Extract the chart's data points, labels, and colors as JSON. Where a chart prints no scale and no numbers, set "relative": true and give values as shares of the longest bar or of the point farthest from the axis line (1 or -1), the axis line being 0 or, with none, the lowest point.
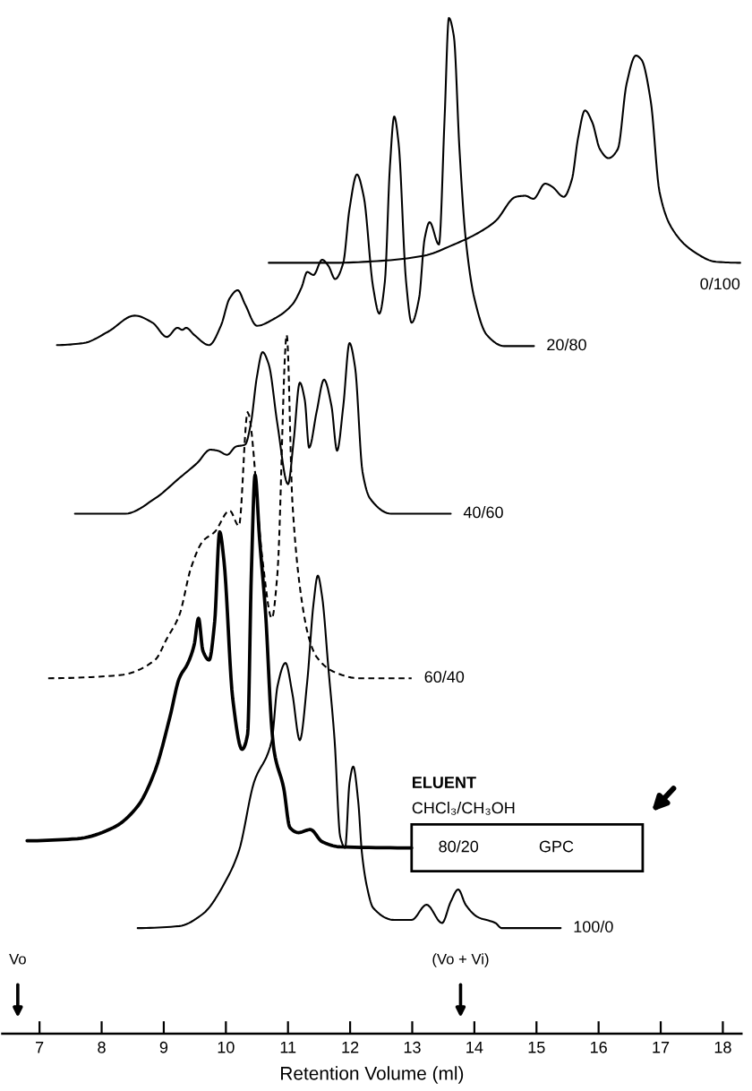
{
  "chart_data": {
    "type": "line",
    "relative": true,
    "xlabel": "Retention Volume (ml)",
    "xlim": [
      6.4,
      18.3
    ],
    "xticks": [
      7,
      8,
      9,
      10,
      11,
      12,
      13,
      14,
      15,
      16,
      17,
      18
    ],
    "tick_labels": "x",
    "line_style": "solid",
    "series": [
      {
        "name": "0/100",
        "color": "#000000",
        "x": [
          10.69,
          11.75,
          12.51,
          13.19,
          13.67,
          14.05,
          14.34,
          14.67,
          14.82,
          14.95,
          15.14,
          15.25,
          15.44,
          15.57,
          15.67,
          15.78,
          15.9,
          16.02,
          16.16,
          16.31,
          16.45,
          16.6,
          16.69,
          16.84,
          16.98,
          17.17,
          17.51,
          17.89,
          18.28
        ],
        "values": [
          0.759,
          0.759,
          0.761,
          0.766,
          0.777,
          0.788,
          0.8,
          0.824,
          0.825,
          0.822,
          0.837,
          0.834,
          0.824,
          0.841,
          0.882,
          0.909,
          0.897,
          0.871,
          0.862,
          0.871,
          0.935,
          0.963,
          0.959,
          0.918,
          0.829,
          0.794,
          0.771,
          0.76,
          0.759
        ]
      },
      {
        "name": "20/80",
        "color": "#000000",
        "x": [
          7.28,
          7.71,
          8.1,
          8.53,
          8.82,
          9.05,
          9.22,
          9.3,
          9.36,
          9.49,
          9.73,
          9.92,
          10.06,
          10.19,
          10.31,
          10.5,
          10.78,
          11.07,
          11.22,
          11.31,
          11.41,
          11.55,
          11.65,
          11.76,
          11.89,
          11.99,
          12.11,
          12.22,
          12.37,
          12.47,
          12.56,
          12.64,
          12.71,
          12.78,
          12.9,
          12.99,
          13.11,
          13.2,
          13.28,
          13.43,
          13.52,
          13.59,
          13.67,
          13.76,
          13.86,
          14.0,
          14.2,
          14.48,
          14.96
        ],
        "values": [
          0.678,
          0.68,
          0.691,
          0.707,
          0.7,
          0.686,
          0.695,
          0.693,
          0.695,
          0.688,
          0.678,
          0.697,
          0.724,
          0.732,
          0.718,
          0.697,
          0.704,
          0.718,
          0.735,
          0.75,
          0.747,
          0.762,
          0.756,
          0.743,
          0.759,
          0.812,
          0.846,
          0.824,
          0.735,
          0.709,
          0.741,
          0.853,
          0.903,
          0.877,
          0.741,
          0.7,
          0.724,
          0.783,
          0.799,
          0.777,
          0.9,
          1.0,
          0.982,
          0.871,
          0.783,
          0.724,
          0.688,
          0.677,
          0.677
        ]
      },
      {
        "name": "40/60",
        "color": "#000000",
        "x": [
          7.57,
          8.38,
          8.86,
          9.25,
          9.54,
          9.75,
          9.87,
          10.02,
          10.16,
          10.31,
          10.4,
          10.5,
          10.59,
          10.69,
          10.83,
          11.0,
          11.09,
          11.19,
          11.27,
          11.34,
          11.46,
          11.58,
          11.7,
          11.79,
          11.89,
          11.99,
          12.08,
          12.2,
          12.32,
          12.66,
          13.62
        ],
        "values": [
          0.512,
          0.512,
          0.527,
          0.547,
          0.562,
          0.575,
          0.574,
          0.57,
          0.578,
          0.58,
          0.6,
          0.647,
          0.671,
          0.659,
          0.6,
          0.541,
          0.583,
          0.641,
          0.624,
          0.577,
          0.612,
          0.644,
          0.618,
          0.574,
          0.618,
          0.68,
          0.656,
          0.553,
          0.527,
          0.512,
          0.512
        ]
      },
      {
        "name": "60/40",
        "color": "#000000",
        "line_style": "dashed",
        "x": [
          7.14,
          8.29,
          8.86,
          9.05,
          9.25,
          9.44,
          9.63,
          9.82,
          10.06,
          10.21,
          10.35,
          10.59,
          10.74,
          10.83,
          10.98,
          11.07,
          11.22,
          11.34,
          11.46,
          11.75,
          12.13,
          12.99
        ],
        "values": [
          0.35,
          0.353,
          0.368,
          0.389,
          0.412,
          0.459,
          0.485,
          0.494,
          0.515,
          0.5,
          0.612,
          0.466,
          0.409,
          0.453,
          0.688,
          0.524,
          0.427,
          0.389,
          0.371,
          0.356,
          0.35,
          0.35
        ]
      },
      {
        "name": "80/20",
        "color": "#000000",
        "x": [
          6.8,
          7.61,
          8.19,
          8.58,
          8.86,
          9.1,
          9.25,
          9.39,
          9.49,
          9.56,
          9.63,
          9.73,
          9.82,
          9.9,
          9.97,
          10.11,
          10.26,
          10.35,
          10.41,
          10.47,
          10.54,
          10.64,
          10.74,
          10.78,
          10.93,
          11.03,
          11.17,
          11.36,
          11.55,
          11.84,
          12.99
        ],
        "values": [
          0.19,
          0.192,
          0.203,
          0.224,
          0.259,
          0.312,
          0.35,
          0.365,
          0.383,
          0.409,
          0.377,
          0.368,
          0.406,
          0.494,
          0.465,
          0.33,
          0.28,
          0.295,
          0.453,
          0.55,
          0.489,
          0.413,
          0.3,
          0.277,
          0.242,
          0.203,
          0.198,
          0.201,
          0.189,
          0.184,
          0.183
        ]
      },
      {
        "name": "100/0",
        "color": "#000000",
        "x": [
          8.58,
          9.25,
          9.63,
          10.02,
          10.21,
          10.45,
          10.74,
          10.83,
          10.96,
          11.07,
          11.19,
          11.31,
          11.41,
          11.48,
          11.55,
          11.65,
          11.75,
          11.84,
          11.92,
          11.99,
          12.05,
          12.13,
          12.19,
          12.27,
          12.37,
          12.71,
          12.99,
          13.23,
          13.48,
          13.62,
          13.74,
          13.86,
          14.05,
          14.34,
          14.44,
          15.39
        ],
        "values": [
          0.104,
          0.106,
          0.118,
          0.153,
          0.18,
          0.247,
          0.289,
          0.342,
          0.365,
          0.335,
          0.289,
          0.347,
          0.423,
          0.451,
          0.43,
          0.36,
          0.289,
          0.194,
          0.183,
          0.247,
          0.263,
          0.229,
          0.178,
          0.145,
          0.124,
          0.112,
          0.112,
          0.127,
          0.109,
          0.13,
          0.142,
          0.127,
          0.115,
          0.109,
          0.104,
          0.104
        ]
      }
    ],
    "annotations": [
      "ELUENT",
      "CHCl₃/CH₃OH",
      "GPC",
      "Vo",
      "(Vo + Vi)"
    ]
  }
}
